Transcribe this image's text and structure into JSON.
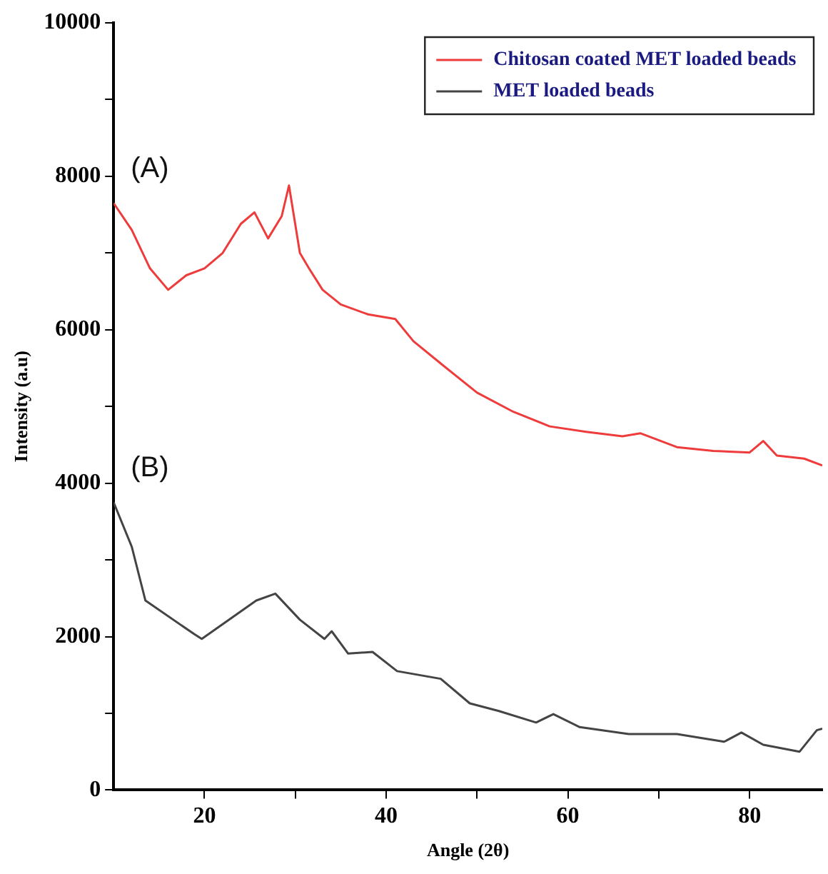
{
  "chart_data": {
    "type": "line",
    "xlabel": "Angle (2θ)",
    "ylabel": "Intensity (a.u)",
    "xlim": [
      10,
      88
    ],
    "ylim": [
      0,
      10000
    ],
    "xticks": [
      20,
      {
        "value": 30,
        "label": null
      },
      40,
      {
        "value": 50,
        "label": null
      },
      60,
      {
        "value": 70,
        "label": null
      },
      80
    ],
    "yticks": [
      0,
      {
        "value": 1000,
        "label": null
      },
      2000,
      {
        "value": 3000,
        "label": null
      },
      4000,
      {
        "value": 5000,
        "label": null
      },
      6000,
      {
        "value": 7000,
        "label": null
      },
      8000,
      {
        "value": 9000,
        "label": null
      },
      10000
    ],
    "legend": "top right",
    "grid": false,
    "marker": "none",
    "line_style": "solid",
    "series": [
      {
        "name": "Chitosan coated MET loaded beads",
        "color": "#ee3b3b",
        "x": [
          10,
          12,
          14,
          16,
          18,
          20,
          22,
          24,
          25.5,
          27,
          28.5,
          29.3,
          30.5,
          31.5,
          33,
          35,
          38,
          41,
          43,
          46,
          50,
          54,
          58,
          62,
          66,
          68,
          72,
          76,
          80,
          81.5,
          83,
          86,
          88
        ],
        "values": [
          7650,
          7300,
          6800,
          6520,
          6710,
          6800,
          7000,
          7380,
          7530,
          7190,
          7480,
          7880,
          7000,
          6800,
          6520,
          6330,
          6200,
          6140,
          5850,
          5560,
          5180,
          4930,
          4740,
          4670,
          4610,
          4650,
          4470,
          4420,
          4400,
          4550,
          4360,
          4320,
          4230
        ]
      },
      {
        "name": "MET loaded beads",
        "color": "#444444",
        "x": [
          10,
          12,
          13.5,
          18.9,
          19.7,
          25.7,
          27.8,
          30.5,
          33.2,
          34,
          35.8,
          38.5,
          41.2,
          46,
          49.2,
          52.4,
          56.5,
          58.4,
          61.3,
          66.7,
          72,
          77.2,
          79.1,
          81.5,
          85.5,
          87.4,
          88
        ],
        "values": [
          3750,
          3170,
          2470,
          2030,
          1970,
          2470,
          2560,
          2220,
          1970,
          2070,
          1780,
          1800,
          1550,
          1450,
          1130,
          1030,
          880,
          990,
          820,
          730,
          730,
          630,
          750,
          590,
          500,
          780,
          800
        ]
      }
    ],
    "annotations": [
      "(A)",
      "(B)"
    ]
  }
}
